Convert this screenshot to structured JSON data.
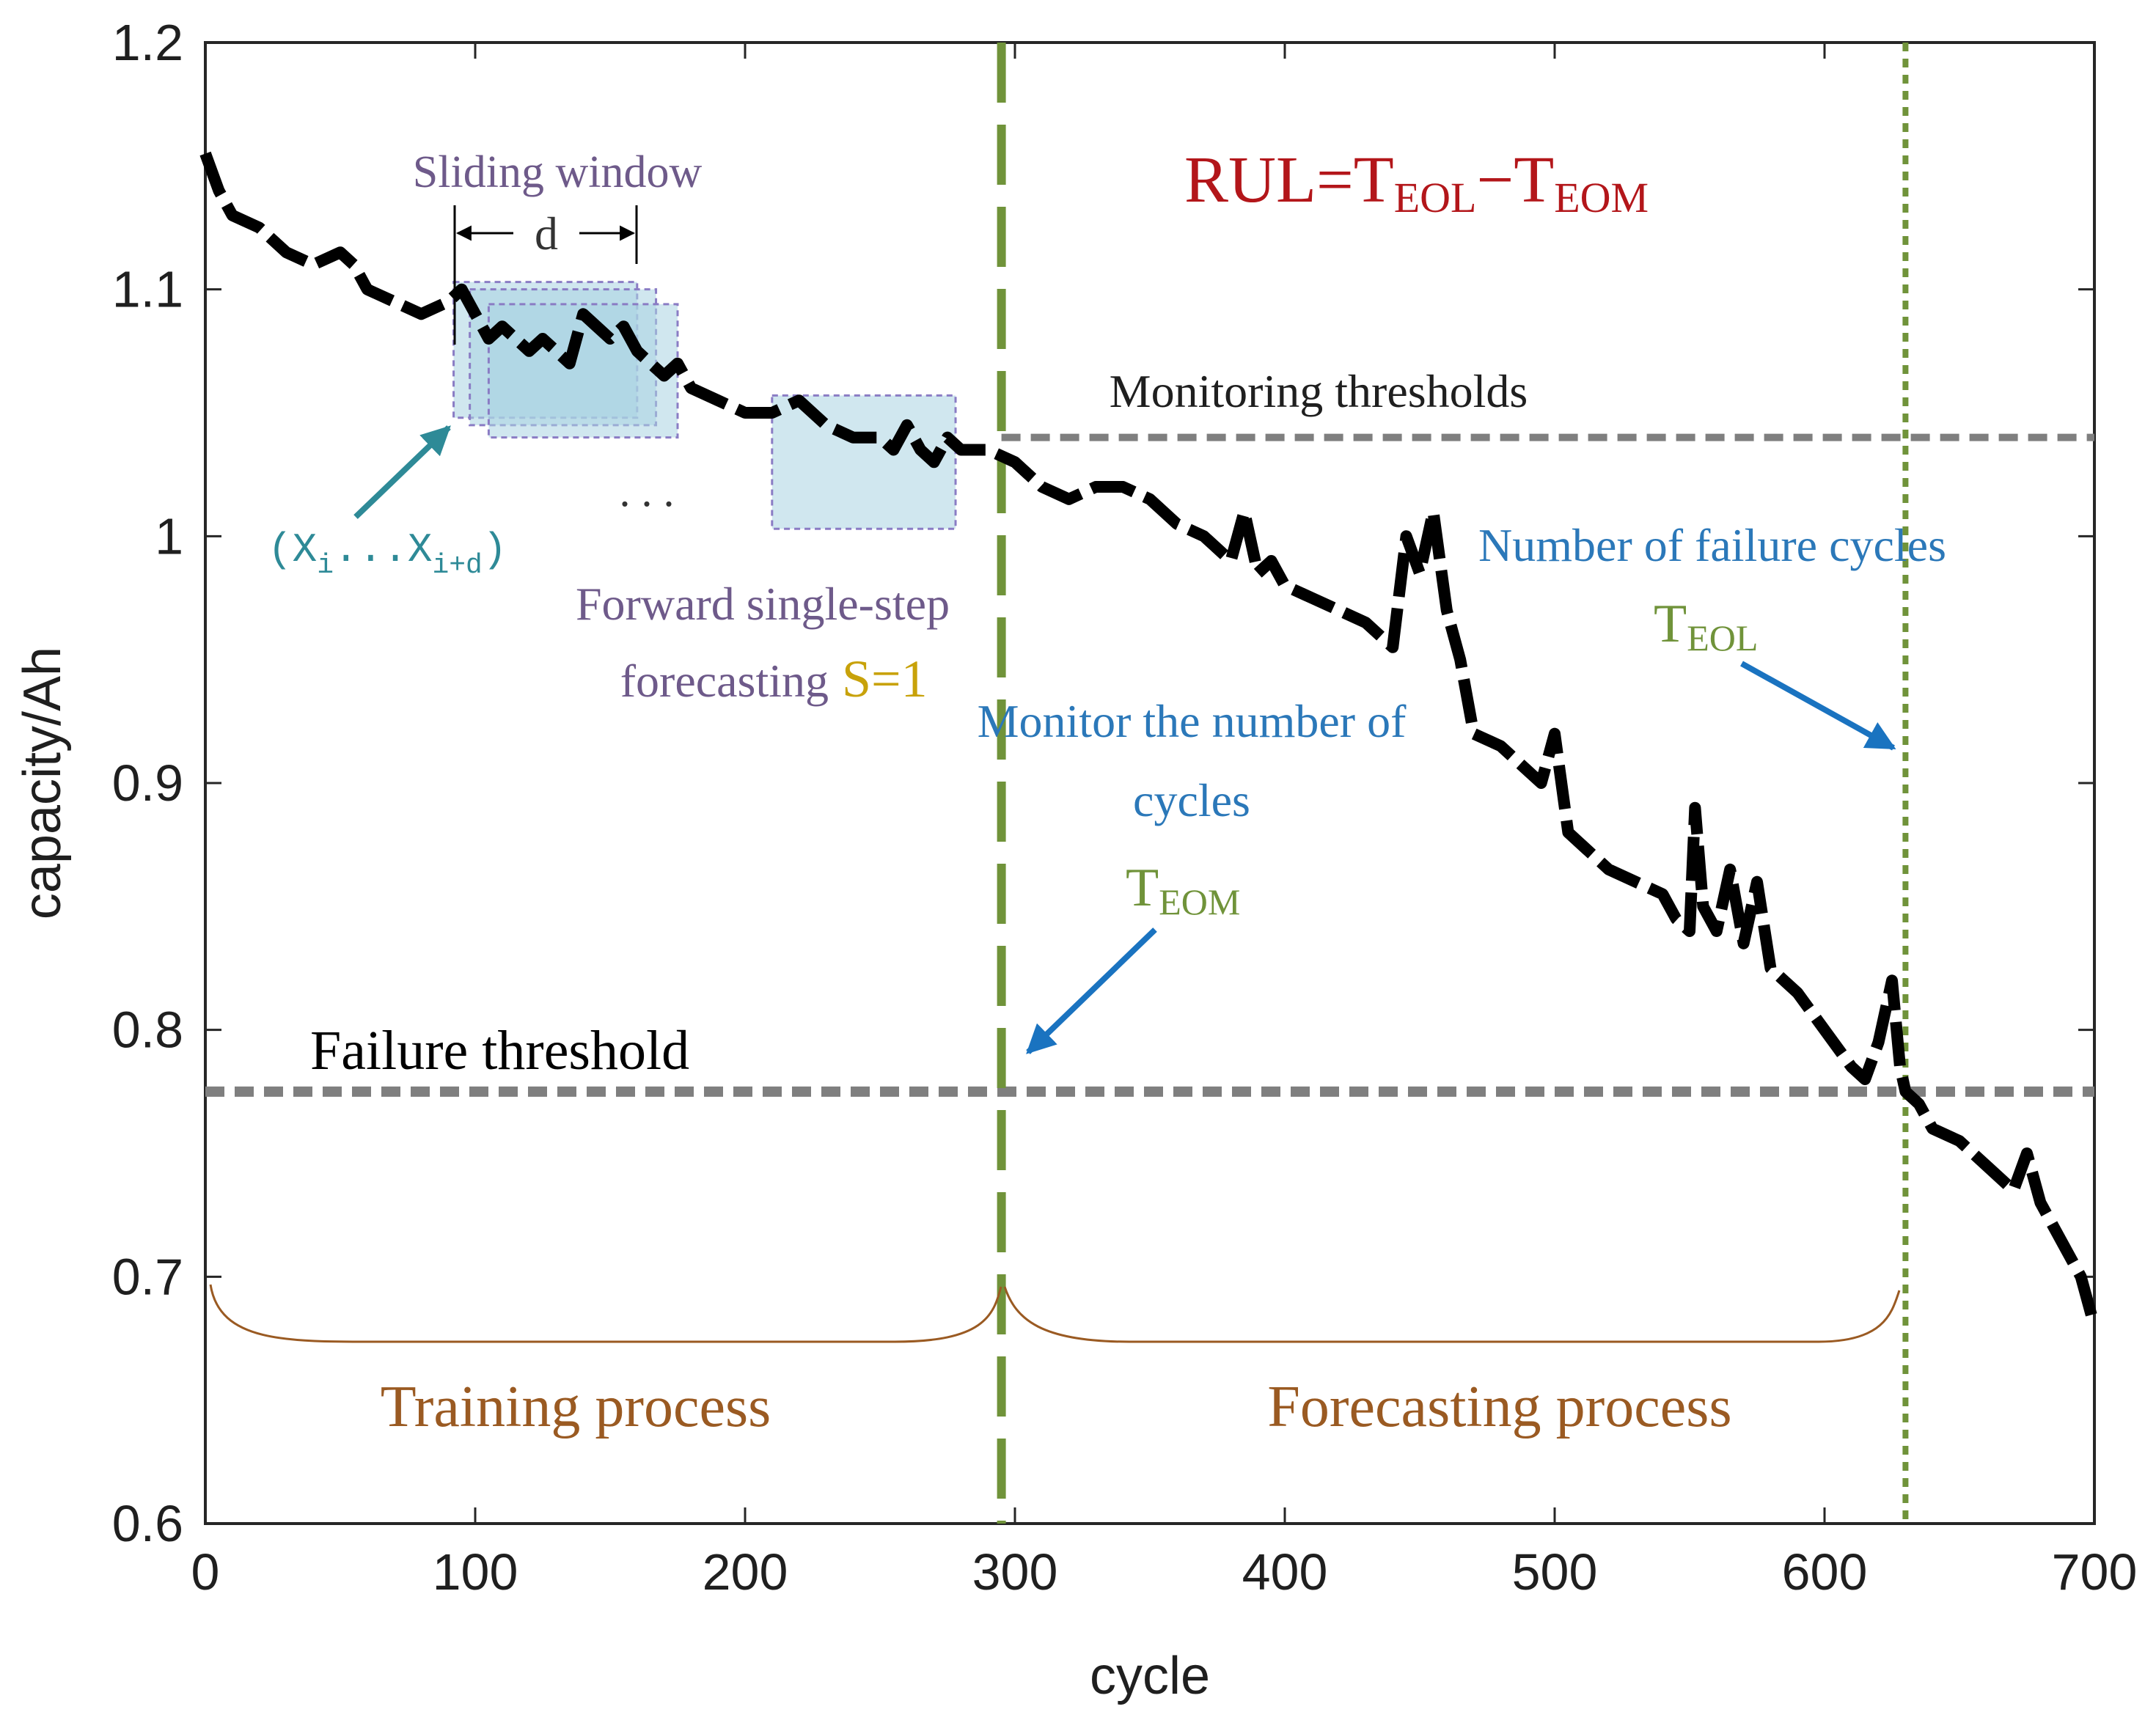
{
  "chart_data": {
    "type": "line",
    "title": "",
    "xlabel": "cycle",
    "ylabel": "capacity/Ah",
    "xlim": [
      0,
      700
    ],
    "ylim": [
      0.6,
      1.2
    ],
    "xticks": [
      0,
      100,
      200,
      300,
      400,
      500,
      600,
      700
    ],
    "yticks": [
      0.6,
      0.7,
      0.8,
      0.9,
      1,
      1.1,
      1.2
    ],
    "ytick_labels": [
      "0.6",
      "0.7",
      "0.8",
      "0.9",
      "1",
      "1.1",
      "1.2"
    ],
    "grid": false,
    "series": [
      {
        "name": "capacity",
        "style": "thick dashed black",
        "x": [
          0,
          5,
          10,
          20,
          30,
          40,
          50,
          55,
          60,
          70,
          80,
          90,
          95,
          100,
          105,
          110,
          115,
          120,
          125,
          130,
          135,
          140,
          145,
          150,
          155,
          160,
          165,
          170,
          175,
          180,
          190,
          200,
          210,
          220,
          225,
          230,
          240,
          250,
          255,
          260,
          265,
          270,
          275,
          280,
          290,
          300,
          310,
          320,
          330,
          340,
          350,
          360,
          370,
          380,
          385,
          390,
          395,
          400,
          410,
          420,
          430,
          435,
          440,
          445,
          450,
          455,
          460,
          465,
          470,
          480,
          490,
          495,
          500,
          505,
          510,
          520,
          530,
          540,
          545,
          550,
          552,
          555,
          560,
          565,
          570,
          575,
          580,
          590,
          600,
          610,
          615,
          620,
          625,
          628,
          630,
          635,
          640,
          650,
          660,
          665,
          670,
          675,
          680,
          690,
          695,
          700
        ],
        "y": [
          1.155,
          1.14,
          1.13,
          1.125,
          1.115,
          1.11,
          1.115,
          1.11,
          1.1,
          1.095,
          1.09,
          1.095,
          1.1,
          1.09,
          1.08,
          1.085,
          1.08,
          1.075,
          1.08,
          1.075,
          1.07,
          1.09,
          1.085,
          1.08,
          1.085,
          1.075,
          1.07,
          1.065,
          1.07,
          1.06,
          1.055,
          1.05,
          1.05,
          1.055,
          1.05,
          1.045,
          1.04,
          1.04,
          1.035,
          1.045,
          1.035,
          1.03,
          1.04,
          1.035,
          1.035,
          1.03,
          1.02,
          1.015,
          1.02,
          1.02,
          1.015,
          1.005,
          1.0,
          0.99,
          1.01,
          0.985,
          0.99,
          0.98,
          0.975,
          0.97,
          0.965,
          0.96,
          0.955,
          1.0,
          0.985,
          1.01,
          0.97,
          0.95,
          0.92,
          0.915,
          0.905,
          0.9,
          0.92,
          0.88,
          0.875,
          0.865,
          0.86,
          0.855,
          0.845,
          0.84,
          0.89,
          0.85,
          0.84,
          0.865,
          0.835,
          0.86,
          0.825,
          0.815,
          0.8,
          0.785,
          0.78,
          0.795,
          0.82,
          0.785,
          0.775,
          0.77,
          0.76,
          0.755,
          0.745,
          0.74,
          0.735,
          0.75,
          0.73,
          0.71,
          0.7,
          0.68
        ]
      }
    ],
    "reference_lines": [
      {
        "name": "monitoring-threshold",
        "orientation": "horizontal",
        "y": 1.04,
        "x_start": 295,
        "x_end": 700,
        "color": "#7f7f7f",
        "style": "dashed"
      },
      {
        "name": "failure-threshold",
        "orientation": "horizontal",
        "y": 0.775,
        "x_start": 0,
        "x_end": 700,
        "color": "#7f7f7f",
        "style": "dashed"
      },
      {
        "name": "t-eom-line",
        "orientation": "vertical",
        "x": 295,
        "color": "#70933a",
        "style": "long-dashed"
      },
      {
        "name": "t-eol-line",
        "orientation": "vertical",
        "x": 630,
        "color": "#70933a",
        "style": "dotted"
      }
    ],
    "windows": [
      {
        "name": "sliding-window-1",
        "x0": 92,
        "x1": 160,
        "y0": 1.048,
        "y1": 1.103
      },
      {
        "name": "sliding-window-2",
        "x0": 98,
        "x1": 167,
        "y0": 1.045,
        "y1": 1.1
      },
      {
        "name": "sliding-window-3",
        "x0": 105,
        "x1": 175,
        "y0": 1.04,
        "y1": 1.094
      },
      {
        "name": "sliding-window-4",
        "x0": 210,
        "x1": 278,
        "y0": 1.003,
        "y1": 1.057
      }
    ],
    "annotations": {
      "sliding_window": "Sliding window",
      "window_width": "d",
      "window_seq_open": "(X",
      "window_seq_i": "i",
      "window_seq_dots": "...X",
      "window_seq_id": "i+d",
      "window_seq_close": ")",
      "ellipsis": ". . .",
      "forward_line1": "Forward single-step",
      "forward_line2": "forecasting",
      "step": "S=1",
      "rul_prefix": "RUL=T",
      "rul_sub1": "EOL",
      "rul_minus": "−T",
      "rul_sub2": "EOM",
      "monitoring": "Monitoring thresholds",
      "failure_cycles": "Number of failure cycles",
      "t_eol_main": "T",
      "t_eol_sub": "EOL",
      "monitor_line1": "Monitor the number of",
      "monitor_line2": "cycles",
      "t_eom_main": "T",
      "t_eom_sub": "EOM",
      "failure_threshold": "Failure threshold",
      "training": "Training process",
      "forecasting": "Forecasting process"
    },
    "colors": {
      "curve": "#000000",
      "threshold": "#7f7f7f",
      "marker": "#70933a",
      "rul": "#b3161a",
      "blue_text": "#2b78b9",
      "teal": "#2e8a97",
      "purple": "#6e5a8a",
      "gold": "#c8a20a",
      "brown": "#9a5a22",
      "window_fill": "#a9d4e2",
      "window_edge": "#8a7cc4",
      "arrow_blue": "#1a73c0"
    }
  }
}
